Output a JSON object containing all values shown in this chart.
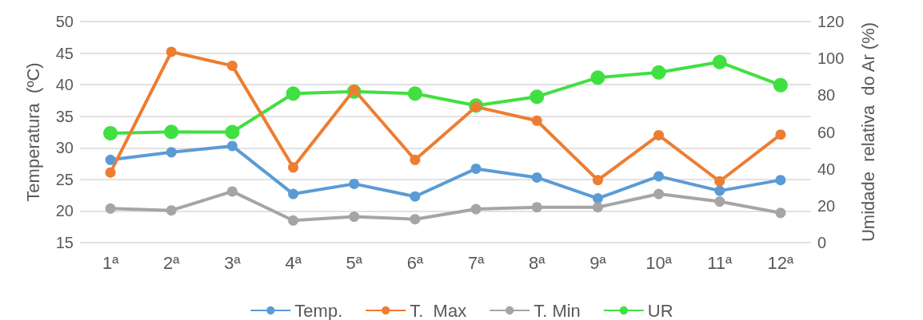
{
  "chart_data": {
    "type": "line",
    "ylabel": "Temperatura  (ºC)",
    "y2label": "Umidade  relativa  do Ar (%)",
    "categories": [
      "1ª",
      "2ª",
      "3ª",
      "4ª",
      "5ª",
      "6ª",
      "7ª",
      "8ª",
      "9ª",
      "10ª",
      "11ª",
      "12ª"
    ],
    "series": [
      {
        "name": "Temp.",
        "color": "#5b9bd5",
        "values": [
          28.1,
          29.3,
          30.3,
          22.7,
          24.3,
          22.3,
          26.7,
          25.3,
          22.0,
          25.5,
          23.2,
          24.9
        ]
      },
      {
        "name": "T.  Max",
        "color": "#ed7d31",
        "values": [
          26.1,
          45.2,
          43.0,
          26.9,
          39.2,
          28.1,
          36.5,
          34.3,
          24.9,
          32.0,
          24.7,
          32.1
        ]
      },
      {
        "name": "T. Min",
        "color": "#a5a5a5",
        "values": [
          20.4,
          20.1,
          23.1,
          18.5,
          19.1,
          18.7,
          20.3,
          20.6,
          20.6,
          22.7,
          21.5,
          19.7
        ]
      },
      {
        "name": "UR",
        "color": "#40e040",
        "axis": "y2",
        "values": [
          59.4,
          60.1,
          60.0,
          80.9,
          82.0,
          80.9,
          74.4,
          79.2,
          89.6,
          92.4,
          98.0,
          85.5
        ]
      }
    ],
    "ylim": [
      15,
      50
    ],
    "yticks": [
      15,
      20,
      25,
      30,
      35,
      40,
      45,
      50
    ],
    "y2lim": [
      0,
      120
    ],
    "y2ticks": [
      0,
      20,
      40,
      60,
      80,
      100,
      120
    ],
    "grid": true,
    "legend": "bottom",
    "marker": "circle",
    "line_style": "solid"
  }
}
